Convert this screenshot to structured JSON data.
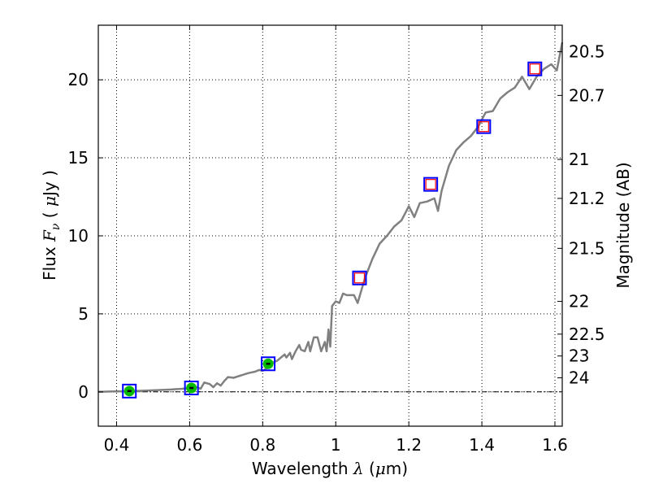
{
  "chart_data": {
    "type": "line",
    "title": "",
    "xlabel": "Wavelength  λ (μm)",
    "xlabel_parts": {
      "text": "Wavelength  ",
      "symbol": "λ",
      "unit_open": " (",
      "unit_mu": "μ",
      "unit_close": "m)"
    },
    "ylabel": "Flux  Fν  ( μJy )",
    "ylabel_parts": {
      "text": "Flux  ",
      "symbol": "F",
      "sub": "ν",
      "unit_open": "  (  ",
      "unit_mu": "μ",
      "unit_close": "Jy )"
    },
    "y2label": "Magnitude (AB)",
    "xlim": [
      0.35,
      1.62
    ],
    "ylim": [
      -2.2,
      23.5
    ],
    "grid": true,
    "x_ticks": [
      {
        "value": 0.4,
        "label": "0.4"
      },
      {
        "value": 0.6,
        "label": "0.6"
      },
      {
        "value": 0.8,
        "label": "0.8"
      },
      {
        "value": 1.0,
        "label": "1"
      },
      {
        "value": 1.2,
        "label": "1.2"
      },
      {
        "value": 1.4,
        "label": "1.4"
      },
      {
        "value": 1.6,
        "label": "1.6"
      }
    ],
    "y_ticks": [
      {
        "value": 0,
        "label": "0"
      },
      {
        "value": 5,
        "label": "5"
      },
      {
        "value": 10,
        "label": "10"
      },
      {
        "value": 15,
        "label": "15"
      },
      {
        "value": 20,
        "label": "20"
      }
    ],
    "y2_ticks": [
      {
        "flux": 21.8,
        "label": "20.5"
      },
      {
        "flux": 19.0,
        "label": "20.7"
      },
      {
        "flux": 14.9,
        "label": "21"
      },
      {
        "flux": 12.4,
        "label": "21.2"
      },
      {
        "flux": 9.2,
        "label": "21.5"
      },
      {
        "flux": 5.8,
        "label": "22"
      },
      {
        "flux": 3.7,
        "label": "22.5"
      },
      {
        "flux": 2.3,
        "label": "23"
      },
      {
        "flux": 0.9,
        "label": "24"
      }
    ],
    "zero_line": 0,
    "colors": {
      "sed": "#808080",
      "box": "#0000ff",
      "model_box": "#ff0000",
      "detection": "#00bb00",
      "grid": "#000000"
    },
    "series": [
      {
        "kind": "sed_model",
        "points": [
          [
            0.35,
            0.0
          ],
          [
            0.38,
            0.02
          ],
          [
            0.42,
            0.04
          ],
          [
            0.45,
            0.05
          ],
          [
            0.48,
            0.08
          ],
          [
            0.52,
            0.12
          ],
          [
            0.55,
            0.15
          ],
          [
            0.58,
            0.2
          ],
          [
            0.6,
            0.25
          ],
          [
            0.62,
            0.3
          ],
          [
            0.63,
            0.2
          ],
          [
            0.64,
            0.6
          ],
          [
            0.655,
            0.5
          ],
          [
            0.665,
            0.3
          ],
          [
            0.675,
            0.55
          ],
          [
            0.685,
            0.4
          ],
          [
            0.695,
            0.7
          ],
          [
            0.705,
            0.95
          ],
          [
            0.72,
            0.9
          ],
          [
            0.74,
            1.05
          ],
          [
            0.76,
            1.2
          ],
          [
            0.78,
            1.3
          ],
          [
            0.79,
            1.4
          ],
          [
            0.8,
            1.35
          ],
          [
            0.81,
            1.5
          ],
          [
            0.82,
            1.6
          ],
          [
            0.83,
            1.9
          ],
          [
            0.84,
            2.0
          ],
          [
            0.85,
            2.2
          ],
          [
            0.86,
            2.4
          ],
          [
            0.865,
            2.2
          ],
          [
            0.875,
            2.5
          ],
          [
            0.88,
            2.1
          ],
          [
            0.89,
            2.6
          ],
          [
            0.9,
            3.0
          ],
          [
            0.905,
            2.7
          ],
          [
            0.915,
            2.6
          ],
          [
            0.925,
            3.2
          ],
          [
            0.93,
            2.6
          ],
          [
            0.94,
            3.5
          ],
          [
            0.95,
            3.5
          ],
          [
            0.96,
            2.6
          ],
          [
            0.97,
            3.2
          ],
          [
            0.975,
            2.6
          ],
          [
            0.98,
            4.0
          ],
          [
            0.985,
            2.9
          ],
          [
            0.99,
            5.5
          ],
          [
            1.0,
            5.8
          ],
          [
            1.01,
            5.7
          ],
          [
            1.02,
            6.3
          ],
          [
            1.03,
            6.2
          ],
          [
            1.05,
            6.2
          ],
          [
            1.06,
            5.7
          ],
          [
            1.08,
            7.3
          ],
          [
            1.1,
            8.5
          ],
          [
            1.12,
            9.5
          ],
          [
            1.14,
            10.0
          ],
          [
            1.16,
            10.6
          ],
          [
            1.18,
            11.0
          ],
          [
            1.2,
            11.9
          ],
          [
            1.215,
            11.2
          ],
          [
            1.23,
            12.1
          ],
          [
            1.25,
            12.2
          ],
          [
            1.27,
            12.4
          ],
          [
            1.28,
            11.6
          ],
          [
            1.29,
            12.9
          ],
          [
            1.31,
            14.5
          ],
          [
            1.33,
            15.5
          ],
          [
            1.35,
            16.0
          ],
          [
            1.37,
            16.4
          ],
          [
            1.39,
            17.0
          ],
          [
            1.41,
            17.9
          ],
          [
            1.43,
            18.0
          ],
          [
            1.45,
            18.8
          ],
          [
            1.47,
            19.2
          ],
          [
            1.49,
            19.5
          ],
          [
            1.51,
            20.2
          ],
          [
            1.53,
            19.4
          ],
          [
            1.55,
            20.2
          ],
          [
            1.57,
            20.7
          ],
          [
            1.59,
            21.0
          ],
          [
            1.605,
            20.6
          ],
          [
            1.62,
            22.4
          ]
        ]
      },
      {
        "kind": "observed",
        "points": [
          {
            "x": 0.435,
            "y": 0.05,
            "detected": true
          },
          {
            "x": 0.605,
            "y": 0.25,
            "detected": true
          },
          {
            "x": 0.815,
            "y": 1.8,
            "detected": true
          },
          {
            "x": 1.065,
            "y": 7.3,
            "detected": false
          },
          {
            "x": 1.26,
            "y": 13.3,
            "detected": false
          },
          {
            "x": 1.405,
            "y": 17.0,
            "detected": false
          },
          {
            "x": 1.545,
            "y": 20.7,
            "detected": false
          }
        ]
      }
    ]
  }
}
